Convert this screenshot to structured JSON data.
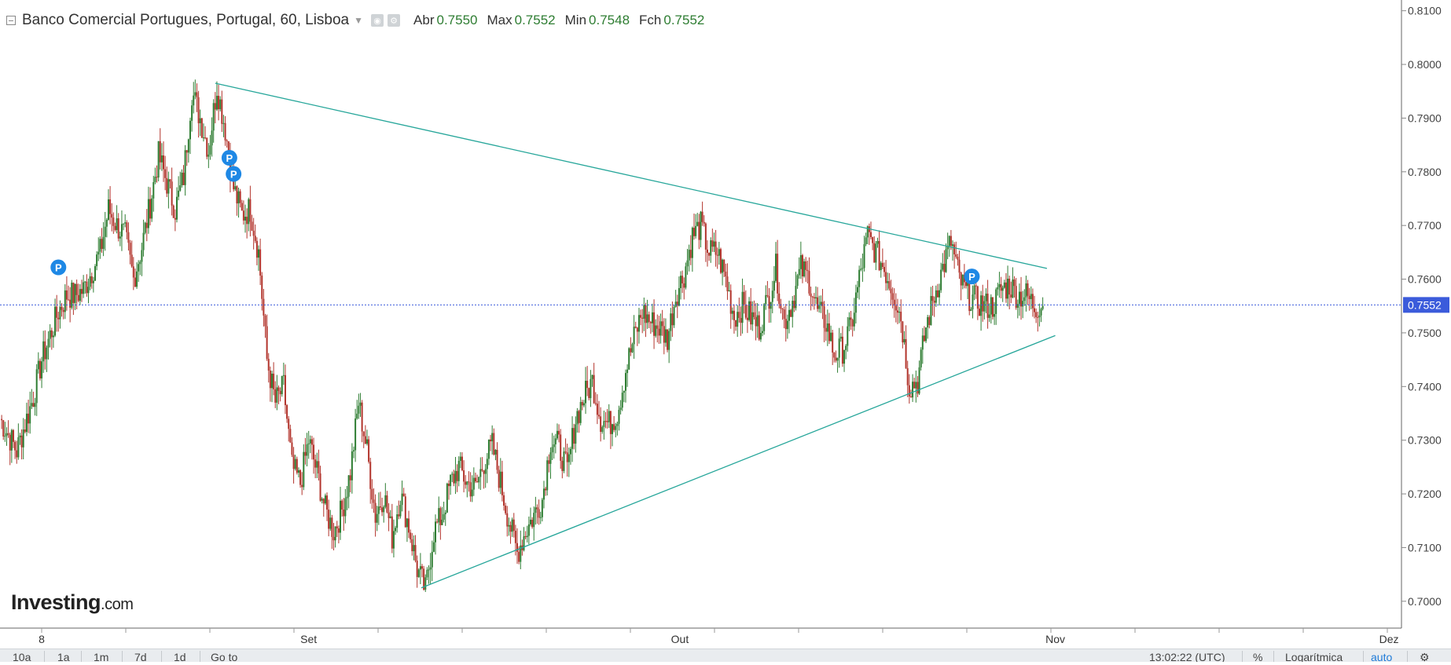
{
  "header": {
    "title": "Banco Comercial Portugues, Portugal, 60, Lisboa",
    "ohlc": [
      {
        "label": "Abr",
        "value": "0.7550"
      },
      {
        "label": "Max",
        "value": "0.7552"
      },
      {
        "label": "Min",
        "value": "0.7548"
      },
      {
        "label": "Fch",
        "value": "0.7552"
      }
    ]
  },
  "brand": {
    "word": "Investing",
    "domain": ".com"
  },
  "price_tag": "0.7552",
  "toolbar": {
    "ranges": [
      "10a",
      "1a",
      "1m",
      "7d",
      "1d"
    ],
    "goto": "Go to",
    "clock": "13:02:22 (UTC)",
    "percent": "%",
    "log": "Logarítmica",
    "auto": "auto"
  },
  "colors": {
    "up": "#2e7d32",
    "down": "#b2342c",
    "trendline": "#26a69a",
    "price_line": "#3b5bdb",
    "marker": "#1e88e5"
  },
  "chart_data": {
    "type": "candlestick",
    "title": "Banco Comercial Portugues, Portugal, 60, Lisboa",
    "y_axis": {
      "ticks": [
        0.7,
        0.71,
        0.72,
        0.73,
        0.74,
        0.75,
        0.76,
        0.77,
        0.78,
        0.79,
        0.8,
        0.81
      ],
      "tick_labels": [
        "0.7000",
        "0.7100",
        "0.7200",
        "0.7300",
        "0.7400",
        "0.7500",
        "0.7600",
        "0.7700",
        "0.7800",
        "0.7900",
        "0.8000",
        "0.8100"
      ],
      "range": [
        0.695,
        0.812
      ],
      "position": "right"
    },
    "x_axis": {
      "labels": [
        "8",
        "Set",
        "Out",
        "Nov",
        "Dez"
      ],
      "label_positions": [
        3.0,
        35.0,
        79.5,
        124.5,
        164.5
      ],
      "range": [
        -2.0,
        166.0
      ]
    },
    "path": [
      [
        -2,
        0.734
      ],
      [
        0,
        0.728
      ],
      [
        2,
        0.738
      ],
      [
        3,
        0.745
      ],
      [
        5,
        0.754
      ],
      [
        6,
        0.757
      ],
      [
        7,
        0.757
      ],
      [
        8,
        0.758
      ],
      [
        10,
        0.765
      ],
      [
        11,
        0.773
      ],
      [
        12,
        0.77
      ],
      [
        13,
        0.768
      ],
      [
        14,
        0.76
      ],
      [
        15,
        0.766
      ],
      [
        16,
        0.774
      ],
      [
        17,
        0.783
      ],
      [
        18,
        0.778
      ],
      [
        19,
        0.773
      ],
      [
        20,
        0.779
      ],
      [
        21,
        0.795
      ],
      [
        22,
        0.79
      ],
      [
        23,
        0.784
      ],
      [
        24,
        0.796
      ],
      [
        25,
        0.788
      ],
      [
        26,
        0.777
      ],
      [
        27,
        0.772
      ],
      [
        28,
        0.773
      ],
      [
        29,
        0.765
      ],
      [
        30,
        0.745
      ],
      [
        31,
        0.737
      ],
      [
        32,
        0.74
      ],
      [
        33,
        0.725
      ],
      [
        34,
        0.722
      ],
      [
        35,
        0.73
      ],
      [
        36,
        0.724
      ],
      [
        37,
        0.717
      ],
      [
        38,
        0.713
      ],
      [
        39,
        0.717
      ],
      [
        40,
        0.724
      ],
      [
        41,
        0.737
      ],
      [
        42,
        0.728
      ],
      [
        43,
        0.716
      ],
      [
        44,
        0.72
      ],
      [
        45,
        0.712
      ],
      [
        46,
        0.72
      ],
      [
        47,
        0.714
      ],
      [
        48,
        0.706
      ],
      [
        49,
        0.702
      ],
      [
        50,
        0.713
      ],
      [
        51,
        0.716
      ],
      [
        52,
        0.722
      ],
      [
        53,
        0.725
      ],
      [
        54,
        0.722
      ],
      [
        55,
        0.721
      ],
      [
        56,
        0.726
      ],
      [
        57,
        0.729
      ],
      [
        58,
        0.722
      ],
      [
        59,
        0.715
      ],
      [
        60,
        0.709
      ],
      [
        61,
        0.713
      ],
      [
        62,
        0.716
      ],
      [
        63,
        0.719
      ],
      [
        64,
        0.73
      ],
      [
        65,
        0.729
      ],
      [
        66,
        0.724
      ],
      [
        67,
        0.734
      ],
      [
        68,
        0.738
      ],
      [
        69,
        0.741
      ],
      [
        70,
        0.734
      ],
      [
        71,
        0.733
      ],
      [
        72,
        0.735
      ],
      [
        73,
        0.743
      ],
      [
        74,
        0.749
      ],
      [
        75,
        0.754
      ],
      [
        76,
        0.752
      ],
      [
        77,
        0.751
      ],
      [
        78,
        0.749
      ],
      [
        79,
        0.757
      ],
      [
        80,
        0.761
      ],
      [
        81,
        0.768
      ],
      [
        82,
        0.77
      ],
      [
        83,
        0.765
      ],
      [
        84,
        0.765
      ],
      [
        85,
        0.76
      ],
      [
        86,
        0.753
      ],
      [
        87,
        0.755
      ],
      [
        88,
        0.753
      ],
      [
        89,
        0.751
      ],
      [
        90,
        0.756
      ],
      [
        91,
        0.762
      ],
      [
        92,
        0.752
      ],
      [
        93,
        0.756
      ],
      [
        94,
        0.762
      ],
      [
        95,
        0.76
      ],
      [
        96,
        0.754
      ],
      [
        97,
        0.752
      ],
      [
        98,
        0.746
      ],
      [
        99,
        0.747
      ],
      [
        100,
        0.751
      ],
      [
        101,
        0.76
      ],
      [
        102,
        0.768
      ],
      [
        103,
        0.765
      ],
      [
        104,
        0.762
      ],
      [
        105,
        0.758
      ],
      [
        106,
        0.753
      ],
      [
        107,
        0.74
      ],
      [
        108,
        0.741
      ],
      [
        109,
        0.751
      ],
      [
        110,
        0.757
      ],
      [
        111,
        0.762
      ],
      [
        112,
        0.767
      ],
      [
        113,
        0.76
      ],
      [
        114,
        0.757
      ],
      [
        115,
        0.756
      ],
      [
        116,
        0.755
      ],
      [
        117,
        0.755
      ],
      [
        118,
        0.758
      ],
      [
        119,
        0.759
      ],
      [
        120,
        0.757
      ],
      [
        121,
        0.757
      ],
      [
        122,
        0.755
      ],
      [
        123,
        0.755
      ]
    ],
    "series": [],
    "trendlines": [
      {
        "name": "upper",
        "from": [
          23.8,
          0.7965
        ],
        "to": [
          123.5,
          0.762
        ]
      },
      {
        "name": "lower",
        "from": [
          48.5,
          0.7025
        ],
        "to": [
          124.5,
          0.7495
        ]
      }
    ],
    "markers": [
      {
        "x": 5.0,
        "y": 0.7622,
        "label": "P"
      },
      {
        "x": 25.5,
        "y": 0.7826,
        "label": "P"
      },
      {
        "x": 26.0,
        "y": 0.7796,
        "label": "P"
      },
      {
        "x": 114.5,
        "y": 0.7605,
        "label": "P"
      }
    ],
    "last_price": 0.7552,
    "grid": false
  }
}
